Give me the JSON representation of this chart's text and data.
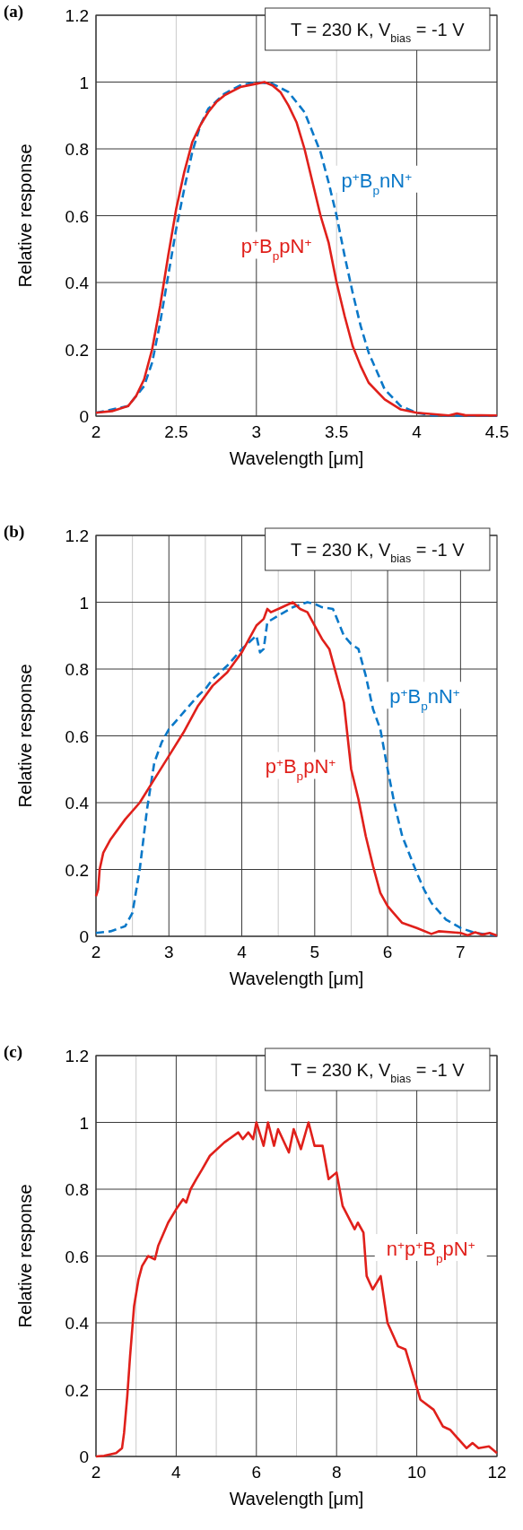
{
  "chart_data": [
    {
      "type": "line",
      "title": "(a)",
      "xlabel": "Wavelength [μm]",
      "ylabel": "Relative response",
      "annotations": [
        "T = 230 K, V$_{bias}$ = -1 V"
      ],
      "xlim": [
        2,
        4.5
      ],
      "ylim": [
        0,
        1.2
      ],
      "xticks": [
        2,
        2.5,
        3,
        3.5,
        4,
        4.5
      ],
      "yticks": [
        0,
        0.2,
        0.4,
        0.6,
        0.8,
        1,
        1.2
      ],
      "grid": true,
      "series": [
        {
          "name": "p$^{+}$B$_{p}$nN$^{+}$",
          "color": "#0a78c8",
          "line_style": "dashed",
          "x": [
            2,
            2.2,
            2.3,
            2.35,
            2.4,
            2.45,
            2.5,
            2.55,
            2.6,
            2.65,
            2.7,
            2.8,
            2.9,
            3,
            3.1,
            3.2,
            3.3,
            3.4,
            3.45,
            3.5,
            3.55,
            3.6,
            3.65,
            3.7,
            3.8,
            3.9,
            4,
            4.1,
            4.5
          ],
          "values": [
            0.01,
            0.03,
            0.09,
            0.16,
            0.28,
            0.42,
            0.56,
            0.68,
            0.79,
            0.87,
            0.92,
            0.965,
            0.99,
            1.0,
            0.995,
            0.97,
            0.91,
            0.79,
            0.7,
            0.6,
            0.48,
            0.37,
            0.27,
            0.19,
            0.08,
            0.03,
            0.01,
            0.002,
            0.001
          ]
        },
        {
          "name": "p$^{+}$B$_{p}$pN$^{+}$",
          "color": "#e0201b",
          "line_style": "solid",
          "x": [
            2,
            2.1,
            2.2,
            2.25,
            2.3,
            2.35,
            2.4,
            2.45,
            2.5,
            2.55,
            2.6,
            2.65,
            2.7,
            2.75,
            2.8,
            2.9,
            3,
            3.05,
            3.1,
            3.15,
            3.2,
            3.25,
            3.3,
            3.35,
            3.4,
            3.45,
            3.5,
            3.55,
            3.6,
            3.65,
            3.7,
            3.8,
            3.9,
            4,
            4.2,
            4.25,
            4.3,
            4.5
          ],
          "values": [
            0.01,
            0.015,
            0.03,
            0.06,
            0.11,
            0.2,
            0.33,
            0.48,
            0.62,
            0.73,
            0.82,
            0.87,
            0.91,
            0.94,
            0.96,
            0.985,
            0.995,
            1.0,
            0.99,
            0.97,
            0.93,
            0.88,
            0.8,
            0.7,
            0.6,
            0.52,
            0.4,
            0.3,
            0.21,
            0.15,
            0.1,
            0.05,
            0.02,
            0.01,
            0.002,
            0.008,
            0.003,
            0.002
          ]
        }
      ]
    },
    {
      "type": "line",
      "title": "(b)",
      "xlabel": "Wavelength [μm]",
      "ylabel": "Relative response",
      "annotations": [
        "T = 230 K, V$_{bias}$ = -1 V"
      ],
      "xlim": [
        2,
        7.5
      ],
      "ylim": [
        0,
        1.2
      ],
      "xticks": [
        2,
        {
          "value": 2.5,
          "label": null
        },
        3,
        {
          "value": 3.5,
          "label": null
        },
        4,
        {
          "value": 4.5,
          "label": null
        },
        5,
        {
          "value": 5.5,
          "label": null
        },
        6,
        {
          "value": 6.5,
          "label": null
        },
        7
      ],
      "yticks": [
        0,
        0.2,
        0.4,
        0.6,
        0.8,
        1,
        1.2
      ],
      "grid": true,
      "series": [
        {
          "name": "p$^{+}$B$_{p}$nN$^{+}$",
          "color": "#0a78c8",
          "line_style": "dashed",
          "x": [
            2,
            2.2,
            2.4,
            2.5,
            2.6,
            2.7,
            2.8,
            2.9,
            3,
            3.2,
            3.4,
            3.5,
            3.6,
            3.8,
            4,
            4.2,
            4.25,
            4.3,
            4.35,
            4.5,
            4.7,
            4.9,
            5,
            5.1,
            5.25,
            5.4,
            5.5,
            5.6,
            5.7,
            5.8,
            5.9,
            6,
            6.1,
            6.2,
            6.4,
            6.5,
            6.6,
            6.8,
            7,
            7.2,
            7.5
          ],
          "values": [
            0.01,
            0.015,
            0.03,
            0.07,
            0.2,
            0.38,
            0.52,
            0.58,
            0.62,
            0.67,
            0.72,
            0.74,
            0.77,
            0.81,
            0.86,
            0.9,
            0.85,
            0.86,
            0.94,
            0.96,
            0.985,
            1.0,
            0.995,
            0.985,
            0.98,
            0.9,
            0.875,
            0.86,
            0.78,
            0.68,
            0.62,
            0.5,
            0.39,
            0.3,
            0.19,
            0.14,
            0.1,
            0.05,
            0.025,
            0.01,
            0.002
          ]
        },
        {
          "name": "p$^{+}$B$_{p}$pN$^{+}$",
          "color": "#e0201b",
          "line_style": "solid",
          "x": [
            2,
            2.03,
            2.05,
            2.1,
            2.2,
            2.4,
            2.6,
            2.8,
            3,
            3.2,
            3.4,
            3.6,
            3.8,
            3.9,
            4,
            4.1,
            4.2,
            4.3,
            4.35,
            4.4,
            4.5,
            4.6,
            4.7,
            4.8,
            4.9,
            5,
            5.1,
            5.2,
            5.3,
            5.4,
            5.45,
            5.5,
            5.6,
            5.7,
            5.8,
            5.9,
            6,
            6.2,
            6.4,
            6.6,
            6.7,
            7,
            7.1,
            7.2,
            7.3,
            7.4,
            7.5
          ],
          "values": [
            0.12,
            0.14,
            0.2,
            0.25,
            0.29,
            0.35,
            0.4,
            0.47,
            0.54,
            0.61,
            0.69,
            0.75,
            0.79,
            0.82,
            0.85,
            0.89,
            0.93,
            0.95,
            0.98,
            0.97,
            0.98,
            0.99,
            1.0,
            0.98,
            0.97,
            0.93,
            0.89,
            0.86,
            0.78,
            0.7,
            0.6,
            0.5,
            0.41,
            0.3,
            0.21,
            0.13,
            0.09,
            0.04,
            0.025,
            0.007,
            0.015,
            0.01,
            0.003,
            0.012,
            0.005,
            0.01,
            0.002
          ]
        }
      ]
    },
    {
      "type": "line",
      "title": "(c)",
      "xlabel": "Wavelength [μm]",
      "ylabel": "Relative response",
      "annotations": [
        "T = 230 K, V$_{bias}$ = -1 V"
      ],
      "xlim": [
        2,
        12
      ],
      "ylim": [
        0,
        1.2
      ],
      "xticks": [
        2,
        {
          "value": 3,
          "label": null
        },
        4,
        {
          "value": 5,
          "label": null
        },
        6,
        {
          "value": 7,
          "label": null
        },
        8,
        {
          "value": 9,
          "label": null
        },
        10,
        {
          "value": 11,
          "label": null
        },
        12
      ],
      "yticks": [
        0,
        0.2,
        0.4,
        0.6,
        0.8,
        1,
        1.2
      ],
      "grid": true,
      "series": [
        {
          "name": "n$^{+}$p$^{+}$B$_{p}$pN$^{+}$",
          "color": "#e0201b",
          "line_style": "solid",
          "x": [
            2,
            2.2,
            2.5,
            2.65,
            2.7,
            2.78,
            2.85,
            2.95,
            3.06,
            3.15,
            3.3,
            3.47,
            3.55,
            3.8,
            4,
            4.17,
            4.25,
            4.36,
            4.5,
            4.65,
            4.84,
            5.2,
            5.55,
            5.66,
            5.8,
            5.92,
            6,
            6.18,
            6.29,
            6.44,
            6.54,
            6.81,
            6.93,
            7.11,
            7.3,
            7.45,
            7.65,
            7.8,
            8,
            8.15,
            8.45,
            8.53,
            8.67,
            8.75,
            8.9,
            9.1,
            9.27,
            9.53,
            9.72,
            10.09,
            10.42,
            10.65,
            10.83,
            11.24,
            11.39,
            11.54,
            11.8,
            12
          ],
          "values": [
            0,
            0.002,
            0.01,
            0.025,
            0.07,
            0.18,
            0.3,
            0.45,
            0.53,
            0.57,
            0.6,
            0.59,
            0.63,
            0.7,
            0.74,
            0.77,
            0.76,
            0.8,
            0.83,
            0.86,
            0.9,
            0.94,
            0.97,
            0.95,
            0.97,
            0.95,
            1.0,
            0.93,
            1.0,
            0.93,
            0.98,
            0.91,
            0.98,
            0.92,
            1.0,
            0.93,
            0.93,
            0.83,
            0.85,
            0.75,
            0.68,
            0.7,
            0.67,
            0.54,
            0.5,
            0.54,
            0.4,
            0.33,
            0.32,
            0.17,
            0.14,
            0.09,
            0.08,
            0.025,
            0.04,
            0.025,
            0.03,
            0.01
          ]
        }
      ]
    }
  ]
}
